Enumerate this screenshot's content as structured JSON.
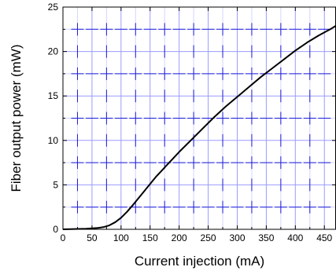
{
  "chart_data": {
    "type": "line",
    "title": "",
    "xlabel": "Current injection (mA)",
    "ylabel": "Fiber output power (mW)",
    "xlim": [
      0,
      470
    ],
    "ylim": [
      0,
      25
    ],
    "xticks": [
      "0",
      "50",
      "100",
      "150",
      "200",
      "250",
      "300",
      "350",
      "400",
      "450"
    ],
    "yticks": [
      "0",
      "5",
      "10",
      "15",
      "20",
      "25"
    ],
    "grid": true,
    "legend": "none",
    "series": [
      {
        "color": "#000000",
        "x": [
          0,
          20,
          40,
          60,
          70,
          80,
          90,
          100,
          110,
          120,
          130,
          140,
          150,
          160,
          170,
          180,
          190,
          200,
          220,
          240,
          260,
          280,
          300,
          320,
          340,
          360,
          380,
          400,
          420,
          440,
          460,
          470
        ],
        "y": [
          0,
          0.03,
          0.07,
          0.15,
          0.25,
          0.45,
          0.8,
          1.3,
          1.95,
          2.7,
          3.5,
          4.3,
          5.1,
          5.9,
          6.6,
          7.3,
          8.0,
          8.7,
          10.0,
          11.3,
          12.6,
          13.8,
          14.9,
          16.0,
          17.1,
          18.1,
          19.1,
          20.1,
          21.0,
          21.8,
          22.5,
          22.9
        ]
      }
    ],
    "colors": {
      "major_grid": "#9b9bff",
      "minor_grid": "#d4d4ff",
      "grid_dash": "#1a1ad8",
      "axis": "#000000"
    }
  }
}
